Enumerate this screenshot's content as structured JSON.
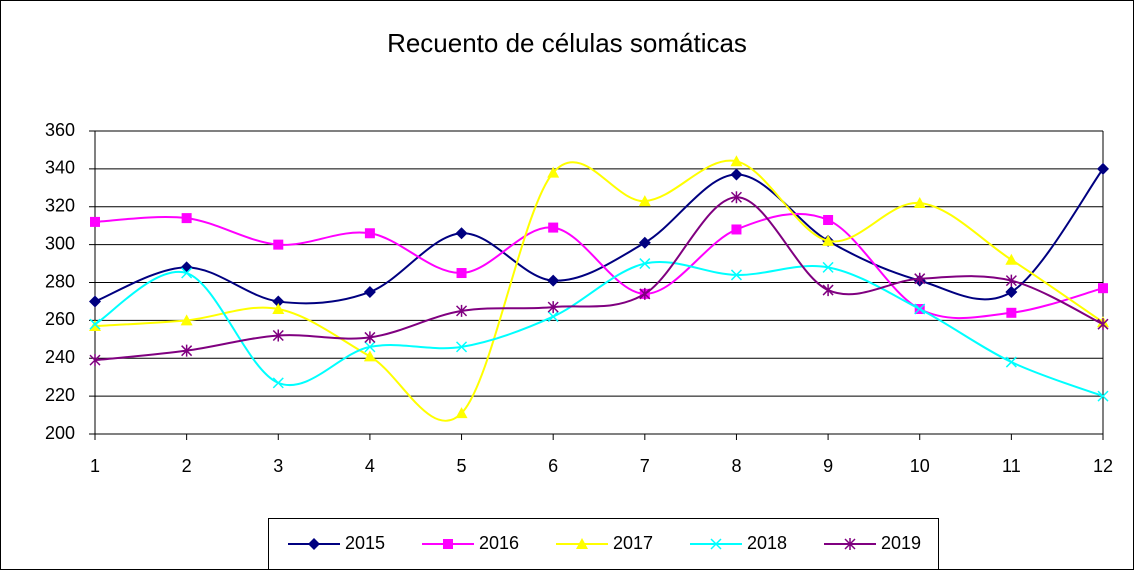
{
  "chart_data": {
    "type": "line",
    "title": "Recuento de células somáticas",
    "categories": [
      "1",
      "2",
      "3",
      "4",
      "5",
      "6",
      "7",
      "8",
      "9",
      "10",
      "11",
      "12"
    ],
    "series": [
      {
        "name": "2015",
        "color": "#000080",
        "marker": "diamond",
        "values": [
          270,
          288,
          270,
          275,
          306,
          281,
          301,
          337,
          302,
          281,
          275,
          340
        ]
      },
      {
        "name": "2016",
        "color": "#ff00ff",
        "marker": "square",
        "values": [
          312,
          314,
          300,
          306,
          285,
          309,
          274,
          308,
          313,
          266,
          264,
          277
        ]
      },
      {
        "name": "2017",
        "color": "#ffff00",
        "marker": "triangle",
        "values": [
          257,
          260,
          266,
          241,
          211,
          338,
          323,
          344,
          302,
          322,
          292,
          259
        ]
      },
      {
        "name": "2018",
        "color": "#00ffff",
        "marker": "x",
        "values": [
          258,
          285,
          227,
          246,
          246,
          262,
          290,
          284,
          288,
          266,
          238,
          220
        ]
      },
      {
        "name": "2019",
        "color": "#800080",
        "marker": "star",
        "values": [
          239,
          244,
          252,
          251,
          265,
          267,
          274,
          325,
          276,
          282,
          281,
          258
        ]
      }
    ],
    "ylim": [
      200,
      360
    ],
    "yticks": [
      200,
      220,
      240,
      260,
      280,
      300,
      320,
      340,
      360
    ],
    "grid": true,
    "smooth": true,
    "legend": "bottom"
  }
}
